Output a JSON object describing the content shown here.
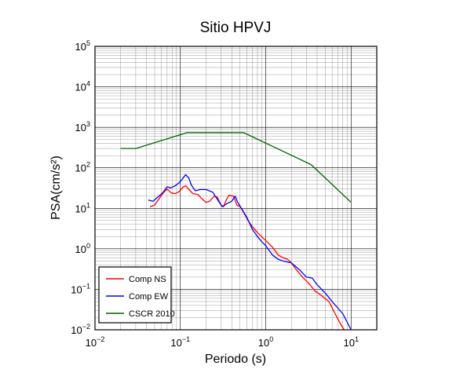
{
  "chart_data": {
    "type": "line",
    "title": "Sitio HPVJ",
    "xlabel": "Periodo (s)",
    "ylabel": "PSA(cm/s²)",
    "x_scale": "log",
    "y_scale": "log",
    "xlim": [
      0.01,
      20
    ],
    "ylim": [
      0.01,
      100000
    ],
    "x_ticks": [
      {
        "base": "10",
        "exp": "−2",
        "value": 0.01
      },
      {
        "base": "10",
        "exp": "−1",
        "value": 0.1
      },
      {
        "base": "10",
        "exp": "0",
        "value": 1
      },
      {
        "base": "10",
        "exp": "1",
        "value": 10
      }
    ],
    "y_ticks": [
      {
        "base": "10",
        "exp": "−2",
        "value": 0.01
      },
      {
        "base": "10",
        "exp": "−1",
        "value": 0.1
      },
      {
        "base": "10",
        "exp": "0",
        "value": 1
      },
      {
        "base": "10",
        "exp": "1",
        "value": 10
      },
      {
        "base": "10",
        "exp": "2",
        "value": 100
      },
      {
        "base": "10",
        "exp": "3",
        "value": 1000
      },
      {
        "base": "10",
        "exp": "4",
        "value": 10000
      },
      {
        "base": "10",
        "exp": "5",
        "value": 100000
      }
    ],
    "grid": true,
    "legend_position": "bottom-left",
    "series": [
      {
        "name": "Comp NS",
        "color": "#ff0000",
        "points": [
          [
            0.044,
            11
          ],
          [
            0.05,
            12
          ],
          [
            0.056,
            17
          ],
          [
            0.063,
            24
          ],
          [
            0.07,
            30
          ],
          [
            0.078,
            24
          ],
          [
            0.087,
            23
          ],
          [
            0.097,
            26
          ],
          [
            0.107,
            33
          ],
          [
            0.115,
            36
          ],
          [
            0.125,
            30
          ],
          [
            0.14,
            23
          ],
          [
            0.16,
            22
          ],
          [
            0.18,
            17
          ],
          [
            0.2,
            14
          ],
          [
            0.22,
            15
          ],
          [
            0.25,
            20
          ],
          [
            0.27,
            19
          ],
          [
            0.3,
            12
          ],
          [
            0.32,
            11
          ],
          [
            0.34,
            15
          ],
          [
            0.37,
            21
          ],
          [
            0.42,
            20
          ],
          [
            0.46,
            12
          ],
          [
            0.5,
            11
          ],
          [
            0.55,
            8
          ],
          [
            0.62,
            5
          ],
          [
            0.7,
            3.5
          ],
          [
            0.8,
            2.5
          ],
          [
            1.0,
            1.6
          ],
          [
            1.2,
            1.1
          ],
          [
            1.4,
            0.7
          ],
          [
            1.6,
            0.6
          ],
          [
            1.8,
            0.55
          ],
          [
            2.0,
            0.45
          ],
          [
            2.3,
            0.3
          ],
          [
            2.7,
            0.2
          ],
          [
            3.2,
            0.14
          ],
          [
            3.8,
            0.09
          ],
          [
            4.5,
            0.07
          ],
          [
            5.5,
            0.05
          ],
          [
            6.5,
            0.025
          ],
          [
            7.5,
            0.014
          ],
          [
            8.3,
            0.01
          ]
        ]
      },
      {
        "name": "Comp EW",
        "color": "#0000ff",
        "points": [
          [
            0.042,
            16
          ],
          [
            0.048,
            15
          ],
          [
            0.056,
            20
          ],
          [
            0.063,
            25
          ],
          [
            0.07,
            34
          ],
          [
            0.077,
            32
          ],
          [
            0.087,
            36
          ],
          [
            0.097,
            43
          ],
          [
            0.105,
            52
          ],
          [
            0.115,
            68
          ],
          [
            0.125,
            57
          ],
          [
            0.135,
            37
          ],
          [
            0.15,
            27
          ],
          [
            0.17,
            29
          ],
          [
            0.2,
            29
          ],
          [
            0.24,
            25
          ],
          [
            0.28,
            15
          ],
          [
            0.31,
            11
          ],
          [
            0.35,
            13
          ],
          [
            0.4,
            15
          ],
          [
            0.44,
            20
          ],
          [
            0.47,
            14
          ],
          [
            0.52,
            10
          ],
          [
            0.6,
            6
          ],
          [
            0.7,
            3
          ],
          [
            0.8,
            2.0
          ],
          [
            0.9,
            1.5
          ],
          [
            1.0,
            1.2
          ],
          [
            1.2,
            0.7
          ],
          [
            1.4,
            0.55
          ],
          [
            1.6,
            0.5
          ],
          [
            2.0,
            0.45
          ],
          [
            2.5,
            0.3
          ],
          [
            3.0,
            0.2
          ],
          [
            3.5,
            0.19
          ],
          [
            4.0,
            0.13
          ],
          [
            5.0,
            0.08
          ],
          [
            6.0,
            0.05
          ],
          [
            8.0,
            0.025
          ],
          [
            10.0,
            0.01
          ]
        ]
      },
      {
        "name": "CSCR 2010",
        "color": "#006400",
        "points": [
          [
            0.02,
            300
          ],
          [
            0.03,
            300
          ],
          [
            0.12,
            740
          ],
          [
            0.55,
            740
          ],
          [
            3.4,
            120
          ],
          [
            10.0,
            14
          ]
        ]
      }
    ]
  }
}
